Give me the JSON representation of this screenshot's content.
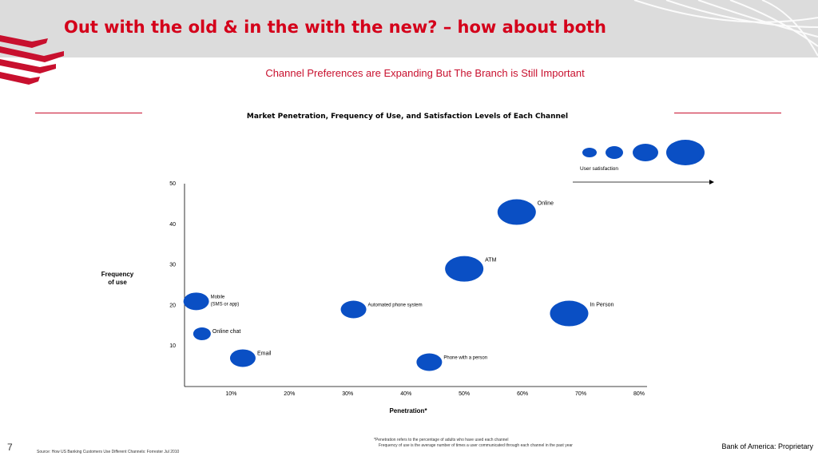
{
  "slide": {
    "title": "Out with the old & in the with the new? – how about both",
    "subtitle": "Channel Preferences are Expanding But The Branch is Still Important",
    "page_number": "7",
    "proprietary": "Bank of America: Proprietary",
    "footnote_penetration": "*Penetration refers to the percentage of adults who have used each channel",
    "footnote_frequency": "Frequency of use is the average number of times a user communicated through each channel in the past year",
    "source": "Source:  How US Banking Customers Use Different Channels: Forrester Jul 2010"
  },
  "colors": {
    "brand_red": "#d4001a",
    "bubble_blue": "#0a4fc4",
    "header_gray": "#dcdcdc"
  },
  "chart_data": {
    "type": "scatter",
    "title": "Market Penetration, Frequency of Use, and Satisfaction Levels of Each Channel",
    "xlabel": "Penetration*",
    "ylabel": "Frequency of use",
    "x_ticks": [
      "10%",
      "20%",
      "30%",
      "40%",
      "50%",
      "60%",
      "70%",
      "80%"
    ],
    "y_ticks": [
      "10",
      "20",
      "30",
      "40",
      "50"
    ],
    "xlim": [
      2,
      80
    ],
    "ylim": [
      0,
      50
    ],
    "legend": {
      "label": "User satisfaction",
      "placement": "top-right",
      "levels": 4
    },
    "points": [
      {
        "name": "Online",
        "x": 59,
        "y": 43,
        "satisfaction": 4
      },
      {
        "name": "ATM",
        "x": 50,
        "y": 29,
        "satisfaction": 4
      },
      {
        "name": "In Person",
        "x": 68,
        "y": 18,
        "satisfaction": 4
      },
      {
        "name": "Mobile\n(SMS or app)",
        "x": 4,
        "y": 21,
        "satisfaction": 3
      },
      {
        "name": "Automated phone system",
        "x": 31,
        "y": 19,
        "satisfaction": 3
      },
      {
        "name": "Online chat",
        "x": 5,
        "y": 13,
        "satisfaction": 2
      },
      {
        "name": "Email",
        "x": 12,
        "y": 7,
        "satisfaction": 3
      },
      {
        "name": "Phone with a person",
        "x": 44,
        "y": 6,
        "satisfaction": 3
      }
    ]
  }
}
